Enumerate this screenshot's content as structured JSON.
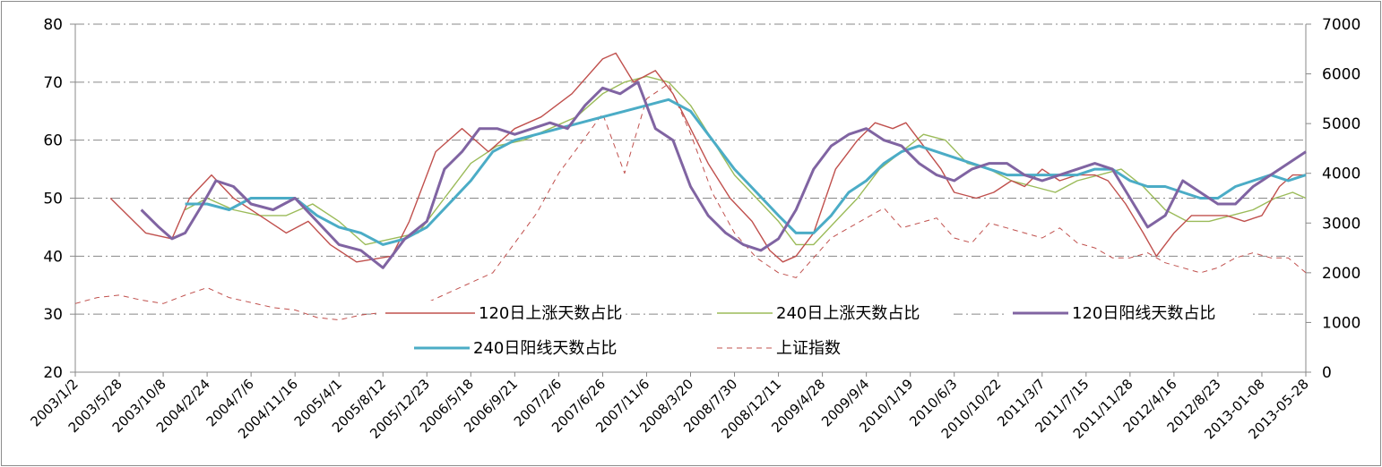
{
  "chart_data": {
    "type": "line",
    "title": "",
    "xlabel": "",
    "ylabel": "",
    "y2label": "",
    "ylim": [
      20,
      80
    ],
    "y2lim": [
      0,
      7000
    ],
    "y_ticks": [
      "20",
      "30",
      "40",
      "50",
      "60",
      "70",
      "80"
    ],
    "y2_ticks": [
      "0",
      "1000",
      "2000",
      "3000",
      "4000",
      "5000",
      "6000",
      "7000"
    ],
    "x_tick_labels": [
      "2003/1/2",
      "2003/5/28",
      "2003/10/8",
      "2004/2/24",
      "2004/7/6",
      "2004/11/16",
      "2005/4/1",
      "2005/8/12",
      "2005/12/23",
      "2006/5/18",
      "2006/9/21",
      "2007/2/6",
      "2007/6/26",
      "2007/11/6",
      "2008/3/20",
      "2008/7/30",
      "2008/12/11",
      "2009/4/28",
      "2009/9/4",
      "2010/1/19",
      "2010/6/3",
      "2010/10/22",
      "2011/3/7",
      "2011/7/15",
      "2011/11/28",
      "2012/4/16",
      "2012/8/23",
      "2013-01-08",
      "2013-05-28"
    ],
    "grid": "horizontal dash-dot",
    "legend_position": "inside-bottom",
    "series": [
      {
        "name": "120日上涨天数占比",
        "axis": "left",
        "color": "#c0504d",
        "width": 1.4,
        "dash": "",
        "x": [
          0,
          0.8,
          1.6,
          2.2,
          2.6,
          3.1,
          3.6,
          4.2,
          4.8,
          5.3,
          5.8,
          6.4,
          7.2,
          7.6,
          8.2,
          8.8,
          9.4,
          10.0,
          10.6,
          11.3,
          12.0,
          12.3,
          12.7,
          13.2,
          13.6,
          14.0,
          14.4,
          14.9,
          15.4,
          15.8,
          16.1,
          16.4,
          16.8,
          17.3,
          17.8,
          18.2,
          18.6,
          18.9,
          19.3,
          19.7,
          20.0,
          20.5,
          20.9,
          21.3,
          21.6,
          22.0,
          22.4,
          22.8,
          23.2,
          23.5,
          23.9,
          24.3,
          24.6,
          25.0,
          25.4,
          25.8,
          26.2,
          26.6,
          27.0,
          27.4,
          27.7,
          28.0
        ],
        "y": [
          null,
          50,
          44,
          43,
          50,
          54,
          50,
          47,
          44,
          46,
          42,
          39,
          40,
          46,
          58,
          62,
          58,
          62,
          64,
          68,
          74,
          75,
          70,
          72,
          68,
          62,
          56,
          50,
          46,
          41,
          39,
          40,
          44,
          55,
          60,
          63,
          62,
          63,
          59,
          55,
          51,
          50,
          51,
          53,
          52,
          55,
          53,
          54,
          54,
          53,
          49,
          44,
          40,
          44,
          47,
          47,
          47,
          46,
          47,
          52,
          54,
          54
        ]
      },
      {
        "name": "240日上涨天数占比",
        "axis": "left",
        "color": "#9bbb59",
        "width": 1.4,
        "dash": "",
        "x": [
          0,
          2.5,
          3.0,
          3.6,
          4.2,
          4.8,
          5.4,
          6.0,
          6.6,
          7.2,
          7.8,
          8.4,
          9.0,
          9.6,
          10.2,
          10.8,
          11.4,
          12.0,
          12.5,
          13.0,
          13.5,
          14.0,
          14.5,
          15.0,
          15.5,
          16.0,
          16.4,
          16.8,
          17.3,
          17.8,
          18.3,
          18.8,
          19.3,
          19.8,
          20.3,
          20.8,
          21.3,
          21.8,
          22.3,
          22.8,
          23.3,
          23.8,
          24.3,
          24.8,
          25.3,
          25.8,
          26.3,
          26.8,
          27.3,
          27.7,
          28.0
        ],
        "y": [
          null,
          48,
          50,
          48,
          47,
          47,
          49,
          46,
          42,
          43,
          44,
          50,
          56,
          59,
          60,
          62,
          64,
          68,
          70,
          71,
          70,
          66,
          60,
          54,
          50,
          46,
          42,
          42,
          46,
          50,
          55,
          58,
          61,
          60,
          56,
          55,
          53,
          52,
          51,
          53,
          54,
          55,
          52,
          48,
          46,
          46,
          47,
          48,
          50,
          51,
          50
        ]
      },
      {
        "name": "120日阳线天数占比",
        "axis": "left",
        "color": "#8064a2",
        "width": 3,
        "dash": "",
        "x": [
          1.5,
          1.9,
          2.2,
          2.5,
          2.9,
          3.2,
          3.6,
          4.0,
          4.5,
          5.0,
          5.5,
          6.0,
          6.5,
          7.0,
          7.5,
          8.0,
          8.4,
          8.8,
          9.2,
          9.6,
          10.0,
          10.4,
          10.8,
          11.2,
          11.6,
          12.0,
          12.4,
          12.8,
          13.2,
          13.6,
          14.0,
          14.4,
          14.8,
          15.2,
          15.6,
          16.0,
          16.4,
          16.8,
          17.2,
          17.6,
          18.0,
          18.4,
          18.8,
          19.2,
          19.6,
          20.0,
          20.4,
          20.8,
          21.2,
          21.6,
          22.0,
          22.4,
          22.8,
          23.2,
          23.6,
          24.0,
          24.4,
          24.8,
          25.2,
          25.6,
          26.0,
          26.4,
          26.8,
          27.2,
          27.6,
          28.0
        ],
        "y": [
          48,
          45,
          43,
          44,
          49,
          53,
          52,
          49,
          48,
          50,
          46,
          42,
          41,
          38,
          43,
          46,
          55,
          58,
          62,
          62,
          61,
          62,
          63,
          62,
          66,
          69,
          68,
          70,
          62,
          60,
          52,
          47,
          44,
          42,
          41,
          43,
          48,
          55,
          59,
          61,
          62,
          60,
          59,
          56,
          54,
          53,
          55,
          56,
          56,
          54,
          53,
          54,
          55,
          56,
          55,
          50,
          45,
          47,
          53,
          51,
          49,
          49,
          52,
          54,
          56,
          58
        ]
      },
      {
        "name": "240日阳线天数占比",
        "axis": "left",
        "color": "#4bacc6",
        "width": 3,
        "dash": "",
        "x": [
          2.5,
          3.0,
          3.5,
          4.0,
          4.5,
          5.0,
          5.5,
          6.0,
          6.5,
          7.0,
          7.5,
          8.0,
          8.5,
          9.0,
          9.5,
          10.0,
          10.5,
          11.0,
          11.5,
          12.0,
          12.5,
          13.0,
          13.5,
          14.0,
          14.5,
          15.0,
          15.5,
          16.0,
          16.4,
          16.8,
          17.2,
          17.6,
          18.0,
          18.4,
          18.8,
          19.2,
          19.6,
          20.0,
          20.4,
          20.8,
          21.2,
          21.6,
          22.0,
          22.4,
          22.8,
          23.2,
          23.6,
          24.0,
          24.4,
          24.8,
          25.2,
          25.6,
          26.0,
          26.4,
          26.8,
          27.2,
          27.6,
          28.0
        ],
        "y": [
          49,
          49,
          48,
          50,
          50,
          50,
          47,
          45,
          44,
          42,
          43,
          45,
          49,
          53,
          58,
          60,
          61,
          62,
          63,
          64,
          65,
          66,
          67,
          65,
          60,
          55,
          51,
          47,
          44,
          44,
          47,
          51,
          53,
          56,
          58,
          59,
          58,
          57,
          56,
          55,
          54,
          54,
          54,
          54,
          54,
          55,
          55,
          53,
          52,
          52,
          51,
          50,
          50,
          52,
          53,
          54,
          53,
          54
        ]
      },
      {
        "name": "上证指数",
        "axis": "right",
        "color": "#c0504d",
        "width": 1,
        "dash": "6,5",
        "x": [
          0,
          0.5,
          1.0,
          1.5,
          2.0,
          2.5,
          3.0,
          3.5,
          4.0,
          4.5,
          5.0,
          5.5,
          6.0,
          6.5,
          7.0,
          7.5,
          8.0,
          8.5,
          9.0,
          9.5,
          10.0,
          10.5,
          11.0,
          11.5,
          12.0,
          12.5,
          13.0,
          13.5,
          14.0,
          14.5,
          15.0,
          15.5,
          16.0,
          16.4,
          16.8,
          17.2,
          17.6,
          18.0,
          18.4,
          18.8,
          19.2,
          19.6,
          20.0,
          20.4,
          20.8,
          21.2,
          21.6,
          22.0,
          22.4,
          22.8,
          23.2,
          23.6,
          24.0,
          24.4,
          24.8,
          25.2,
          25.6,
          26.0,
          26.4,
          26.8,
          27.2,
          27.6,
          28.0
        ],
        "y": [
          1380,
          1500,
          1550,
          1450,
          1380,
          1550,
          1700,
          1500,
          1400,
          1300,
          1250,
          1100,
          1050,
          1150,
          1200,
          1300,
          1400,
          1600,
          1800,
          2000,
          2600,
          3200,
          4000,
          4600,
          5200,
          4000,
          5500,
          5800,
          4800,
          3600,
          2800,
          2300,
          2000,
          1900,
          2300,
          2700,
          2900,
          3100,
          3300,
          2900,
          3000,
          3100,
          2700,
          2600,
          3000,
          2900,
          2800,
          2700,
          2900,
          2600,
          2500,
          2300,
          2300,
          2400,
          2200,
          2100,
          2000,
          2100,
          2300,
          2400,
          2300,
          2300,
          2000
        ]
      }
    ]
  }
}
